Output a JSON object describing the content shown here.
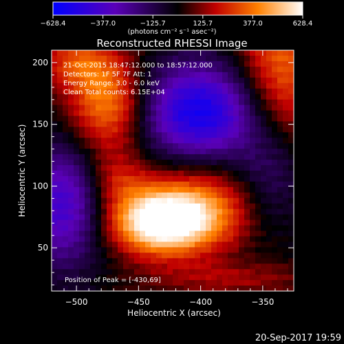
{
  "chart_data": {
    "type": "heatmap",
    "title": "Reconstructed RHESSI Image",
    "xlabel": "Heliocentric X (arcsec)",
    "ylabel": "Heliocentric Y (arcsec)",
    "xlim": [
      -520,
      -325
    ],
    "ylim": [
      15,
      210
    ],
    "x_ticks": [
      -500,
      -450,
      -400,
      -350
    ],
    "y_ticks": [
      50,
      100,
      150,
      200
    ],
    "colorbar": {
      "min": -628.4,
      "max": 628.4,
      "tick_labels": [
        "-628.4",
        "-377.0",
        "-125.7",
        "125.7",
        "377.0",
        "628.4"
      ],
      "unit_label": "(photons cm⁻² s⁻¹ asec⁻²)"
    },
    "annotations": [
      "21-Oct-2015 18:47:12.000 to 18:57:12.000",
      "Detectors: 1F 5F 7F  Att: 1",
      "Energy Range: 3.0 - 6.0 keV",
      "Clean    Total counts: 6.15E+04"
    ],
    "peak_label": "Position of Peak = [-430,69]",
    "sources": [
      {
        "x": -432,
        "y": 70,
        "sx": 30,
        "sy": 18,
        "amp": 640
      },
      {
        "x": -402,
        "y": 85,
        "sx": 38,
        "sy": 24,
        "amp": 330
      },
      {
        "x": -470,
        "y": 105,
        "sx": 18,
        "sy": 16,
        "amp": 200
      },
      {
        "x": -475,
        "y": 165,
        "sx": 22,
        "sy": 28,
        "amp": 420
      },
      {
        "x": -500,
        "y": 200,
        "sx": 22,
        "sy": 16,
        "amp": 260
      },
      {
        "x": -335,
        "y": 195,
        "sx": 25,
        "sy": 45,
        "amp": 360
      },
      {
        "x": -375,
        "y": 25,
        "sx": 50,
        "sy": 10,
        "amp": 150
      },
      {
        "x": -400,
        "y": 160,
        "sx": 35,
        "sy": 28,
        "amp": -560
      },
      {
        "x": -510,
        "y": 85,
        "sx": 25,
        "sy": 35,
        "amp": -420
      },
      {
        "x": -345,
        "y": 105,
        "sx": 20,
        "sy": 30,
        "amp": -220
      }
    ]
  },
  "footer": {
    "timestamp": "20-Sep-2017 19:59"
  }
}
